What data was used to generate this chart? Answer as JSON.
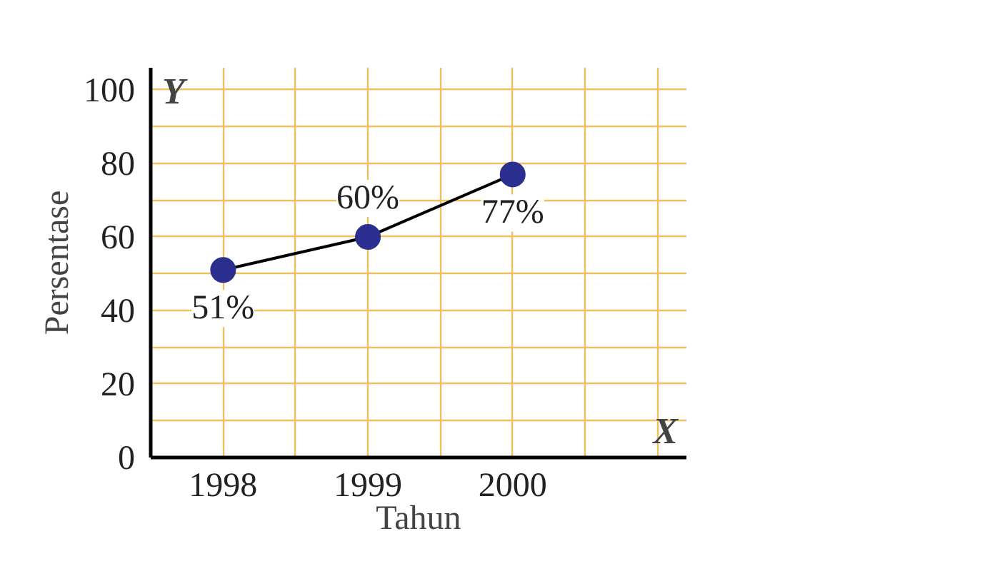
{
  "chart_data": {
    "type": "line",
    "xlabel": "Tahun",
    "ylabel": "Persentase",
    "annotations": [
      "X",
      "Y"
    ],
    "x": [
      1998,
      1999,
      2000
    ],
    "series": [
      {
        "color": "#2b2f8f",
        "values": [
          51,
          60,
          77
        ],
        "value_labels": [
          "51%",
          "60%",
          "77%"
        ]
      }
    ],
    "xlim": [
      1997.5,
      2001.2
    ],
    "ylim": [
      0,
      106
    ],
    "xticks": [
      {
        "value": 1997.5,
        "label": null
      },
      1998,
      {
        "value": 1998.5,
        "label": null
      },
      1999,
      {
        "value": 1999.5,
        "label": null
      },
      2000,
      {
        "value": 2000.5,
        "label": null
      },
      {
        "value": 2001,
        "label": null
      }
    ],
    "yticks": [
      {
        "value": 0,
        "label": "0"
      },
      {
        "value": 10,
        "label": null
      },
      20,
      {
        "value": 30,
        "label": null
      },
      40,
      {
        "value": 50,
        "label": null
      },
      60,
      {
        "value": 70,
        "label": null
      },
      80,
      {
        "value": 90,
        "label": null
      },
      100
    ],
    "grid": true,
    "marker": "circle",
    "line_style": "solid"
  }
}
